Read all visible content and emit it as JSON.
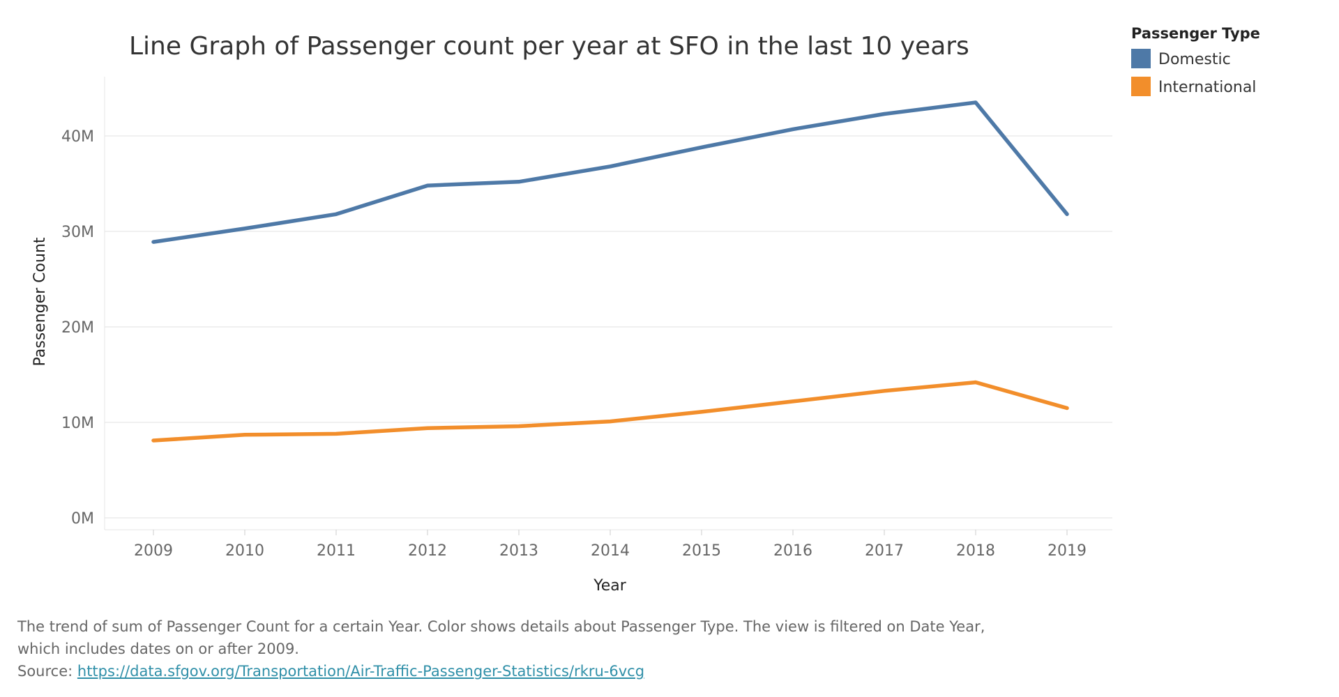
{
  "chart_data": {
    "type": "line",
    "title": "Line Graph of Passenger count per year at SFO in the last 10 years",
    "xlabel": "Year",
    "ylabel": "Passenger Count",
    "categories": [
      "2009",
      "2010",
      "2011",
      "2012",
      "2013",
      "2014",
      "2015",
      "2016",
      "2017",
      "2018",
      "2019"
    ],
    "ylim": [
      0,
      45000000
    ],
    "yticks": [
      0,
      10000000,
      20000000,
      30000000,
      40000000
    ],
    "ytick_labels": [
      "0M",
      "10M",
      "20M",
      "30M",
      "40M"
    ],
    "grid": "horizontal",
    "legend": {
      "title": "Passenger Type",
      "placement": "top-right"
    },
    "series": [
      {
        "name": "Domestic",
        "color": "#4e79a7",
        "values": [
          28900000,
          30300000,
          31800000,
          34800000,
          35200000,
          36800000,
          38800000,
          40700000,
          42300000,
          43500000,
          31800000
        ]
      },
      {
        "name": "International",
        "color": "#f28e2b",
        "values": [
          8100000,
          8700000,
          8800000,
          9400000,
          9600000,
          10100000,
          11100000,
          12200000,
          13300000,
          14200000,
          11500000
        ]
      }
    ]
  },
  "caption": {
    "line1": "The trend of sum of Passenger Count for a certain Year.  Color shows details about Passenger Type. The view is filtered on Date Year,",
    "line2": "which includes dates on or after 2009.",
    "source_label": "Source: ",
    "source_url": "https://data.sfgov.org/Transportation/Air-Traffic-Passenger-Statistics/rkru-6vcg"
  }
}
